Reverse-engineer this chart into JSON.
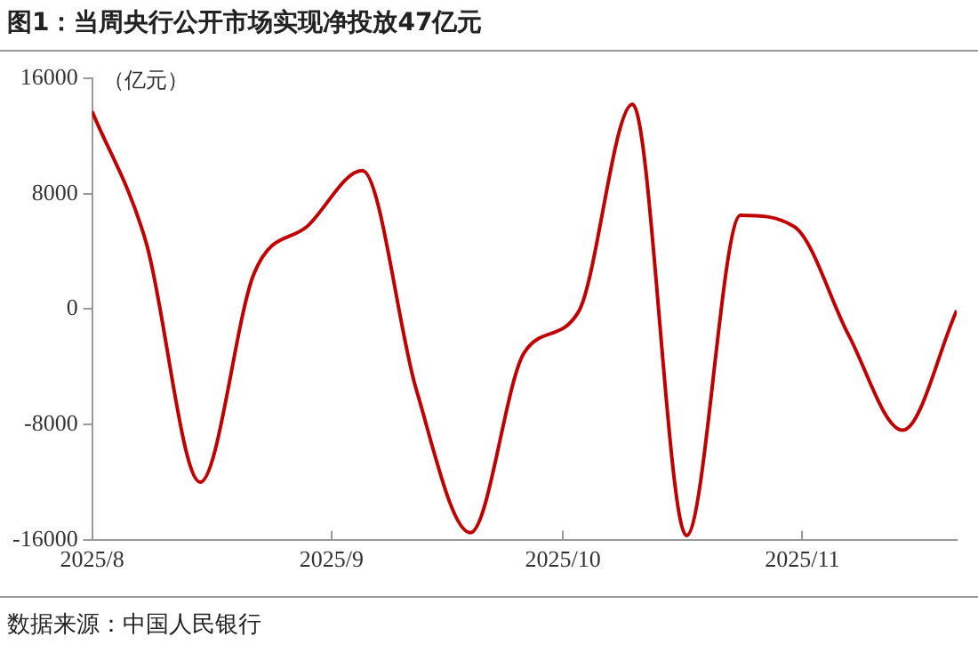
{
  "chart_data": {
    "type": "line",
    "title": "图1：当周央行公开市场实现净投放47亿元",
    "ylabel": "（亿元）",
    "annotations": [
      "数据来源：中国人民银行"
    ],
    "x": [
      "2025-08-01",
      "2025-08-08",
      "2025-08-15",
      "2025-08-22",
      "2025-08-29",
      "2025-09-05",
      "2025-09-12",
      "2025-09-19",
      "2025-09-26",
      "2025-10-03",
      "2025-10-10",
      "2025-10-17",
      "2025-10-24",
      "2025-10-31",
      "2025-11-07",
      "2025-11-14",
      "2025-11-21"
    ],
    "series": [
      {
        "color": "#c00000",
        "values": [
          13700,
          4600,
          -12000,
          2500,
          5800,
          9600,
          -5600,
          -15500,
          -3000,
          -200,
          14200,
          -15700,
          6500,
          5700,
          -1800,
          -8400,
          -100
        ]
      }
    ],
    "xlim": [
      "2025-08-01",
      "2025-11-21"
    ],
    "xticks": [
      {
        "value": "2025-08-01",
        "label": "2025/8"
      },
      {
        "value": "2025-09-01",
        "label": "2025/9"
      },
      {
        "value": "2025-10-01",
        "label": "2025/10"
      },
      {
        "value": "2025-11-01",
        "label": "2025/11"
      }
    ],
    "ylim": [
      -16000,
      16000
    ],
    "yticks": [
      -16000,
      -8000,
      0,
      8000,
      16000
    ],
    "grid": false,
    "legend": false,
    "marker": "none",
    "line_style": "solid"
  }
}
